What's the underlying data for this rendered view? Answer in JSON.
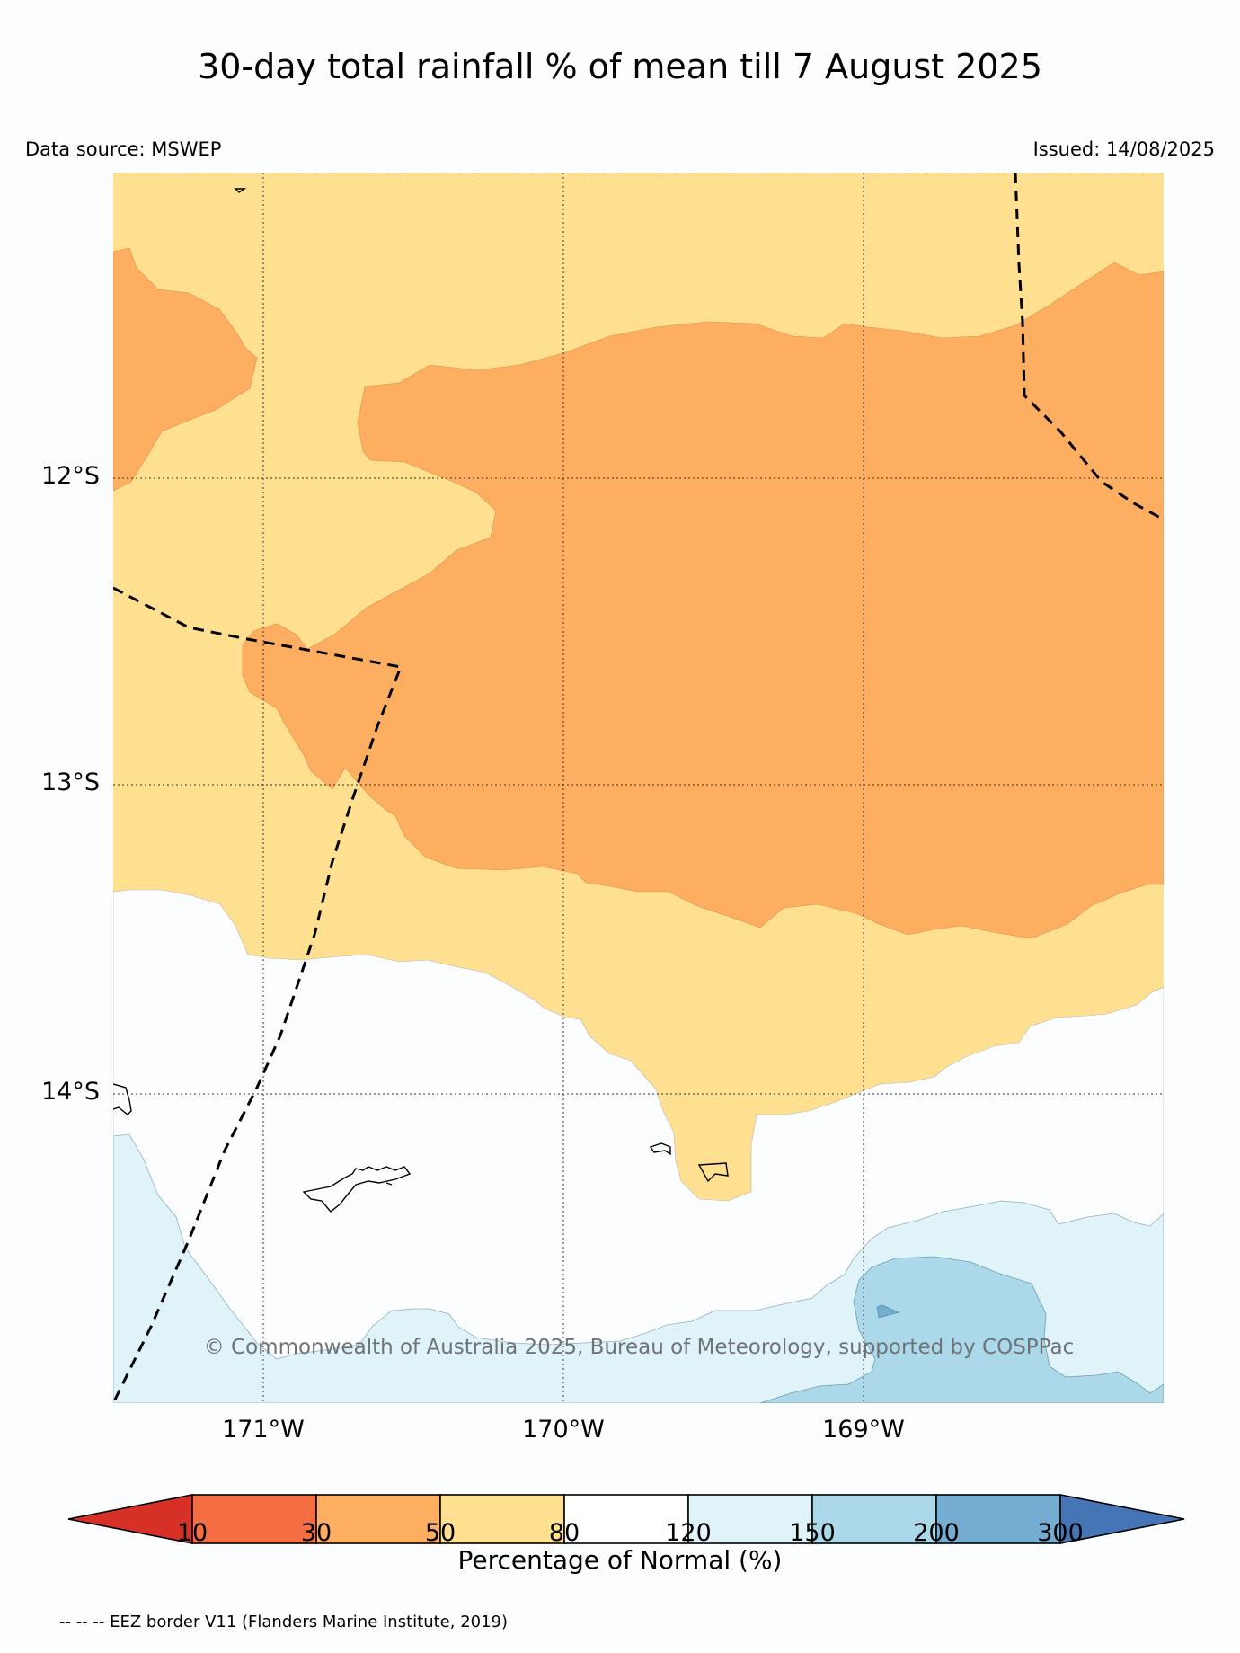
{
  "title": "30-day total rainfall % of mean till 7 August 2025",
  "data_source": "Data source: MSWEP",
  "issued": "Issued: 14/08/2025",
  "copyright": "© Commonwealth of Australia 2025, Bureau of Meteorology, supported by COSPPac",
  "lat_labels": [
    "12°S",
    "13°S",
    "14°S"
  ],
  "lon_labels": [
    "171°W",
    "170°W",
    "169°W"
  ],
  "colorbar": {
    "ticks": [
      "10",
      "30",
      "50",
      "80",
      "120",
      "150",
      "200",
      "300"
    ],
    "label": "Percentage of Normal (%)",
    "colors": [
      "#d73027",
      "#f46d43",
      "#fdae61",
      "#fee090",
      "#ffffff",
      "#e0f3f8",
      "#abd9e9",
      "#74add1",
      "#4575b4"
    ]
  },
  "footnote": "-- -- -- EEZ border V11 (Flanders Marine Institute, 2019)",
  "legend_classes": {
    "below_50": "#fdae61",
    "between_50_80": "#fee090",
    "between_80_120": "#ffffff",
    "between_120_150": "#e0f3f8",
    "between_150_200": "#abd9e9",
    "between_200_300": "#74add1"
  }
}
